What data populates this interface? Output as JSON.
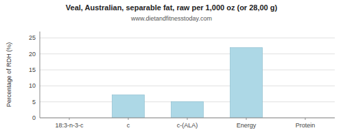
{
  "chart_data": {
    "type": "bar",
    "title": "Veal, Australian, separable fat, raw per 1,000 oz (or 28,00 g)",
    "subtitle": "www.dietandfitnesstoday.com",
    "y_label": "Percentage of RDH (%)",
    "categories": [
      "18:3-n-3-c",
      "c",
      "c-(ALA)",
      "Energy",
      "Protein"
    ],
    "values": [
      0,
      7.2,
      5.1,
      22.0,
      0
    ],
    "color": "#add8e6",
    "ylim": [
      0,
      27
    ],
    "yticks": [
      0,
      5,
      10,
      15,
      20,
      25
    ],
    "grid": true
  }
}
